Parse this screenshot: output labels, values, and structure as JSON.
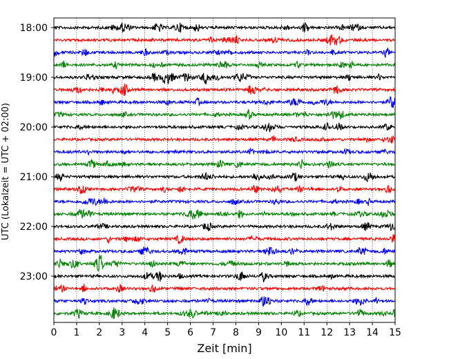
{
  "chart_data": {
    "type": "line",
    "subtype": "helicorder",
    "xlabel": "Zeit  [min]",
    "ylabel": "UTC (Lokalzeit = UTC + 02:00)",
    "xlim": [
      0,
      15
    ],
    "x_ticks": [
      "0",
      "1",
      "2",
      "3",
      "4",
      "5",
      "6",
      "7",
      "8",
      "9",
      "10",
      "11",
      "12",
      "13",
      "14",
      "15"
    ],
    "y_tick_labels": [
      "18:00",
      "19:00",
      "20:00",
      "21:00",
      "22:00",
      "23:00"
    ],
    "grid": {
      "x": true,
      "y": false,
      "style": "dotted"
    },
    "row_interval_minutes": 15,
    "rows": [
      "18:00",
      "18:15",
      "18:30",
      "18:45",
      "19:00",
      "19:15",
      "19:30",
      "19:45",
      "20:00",
      "20:15",
      "20:30",
      "20:45",
      "21:00",
      "21:15",
      "21:30",
      "21:45",
      "22:00",
      "22:15",
      "22:30",
      "22:45",
      "23:00",
      "23:15",
      "23:30",
      "23:45"
    ],
    "series_colors": [
      "#000000",
      "#ff0000",
      "#0000ff",
      "#008000"
    ],
    "color_cycle": "black, red, blue, green repeating per 15-minute trace"
  }
}
